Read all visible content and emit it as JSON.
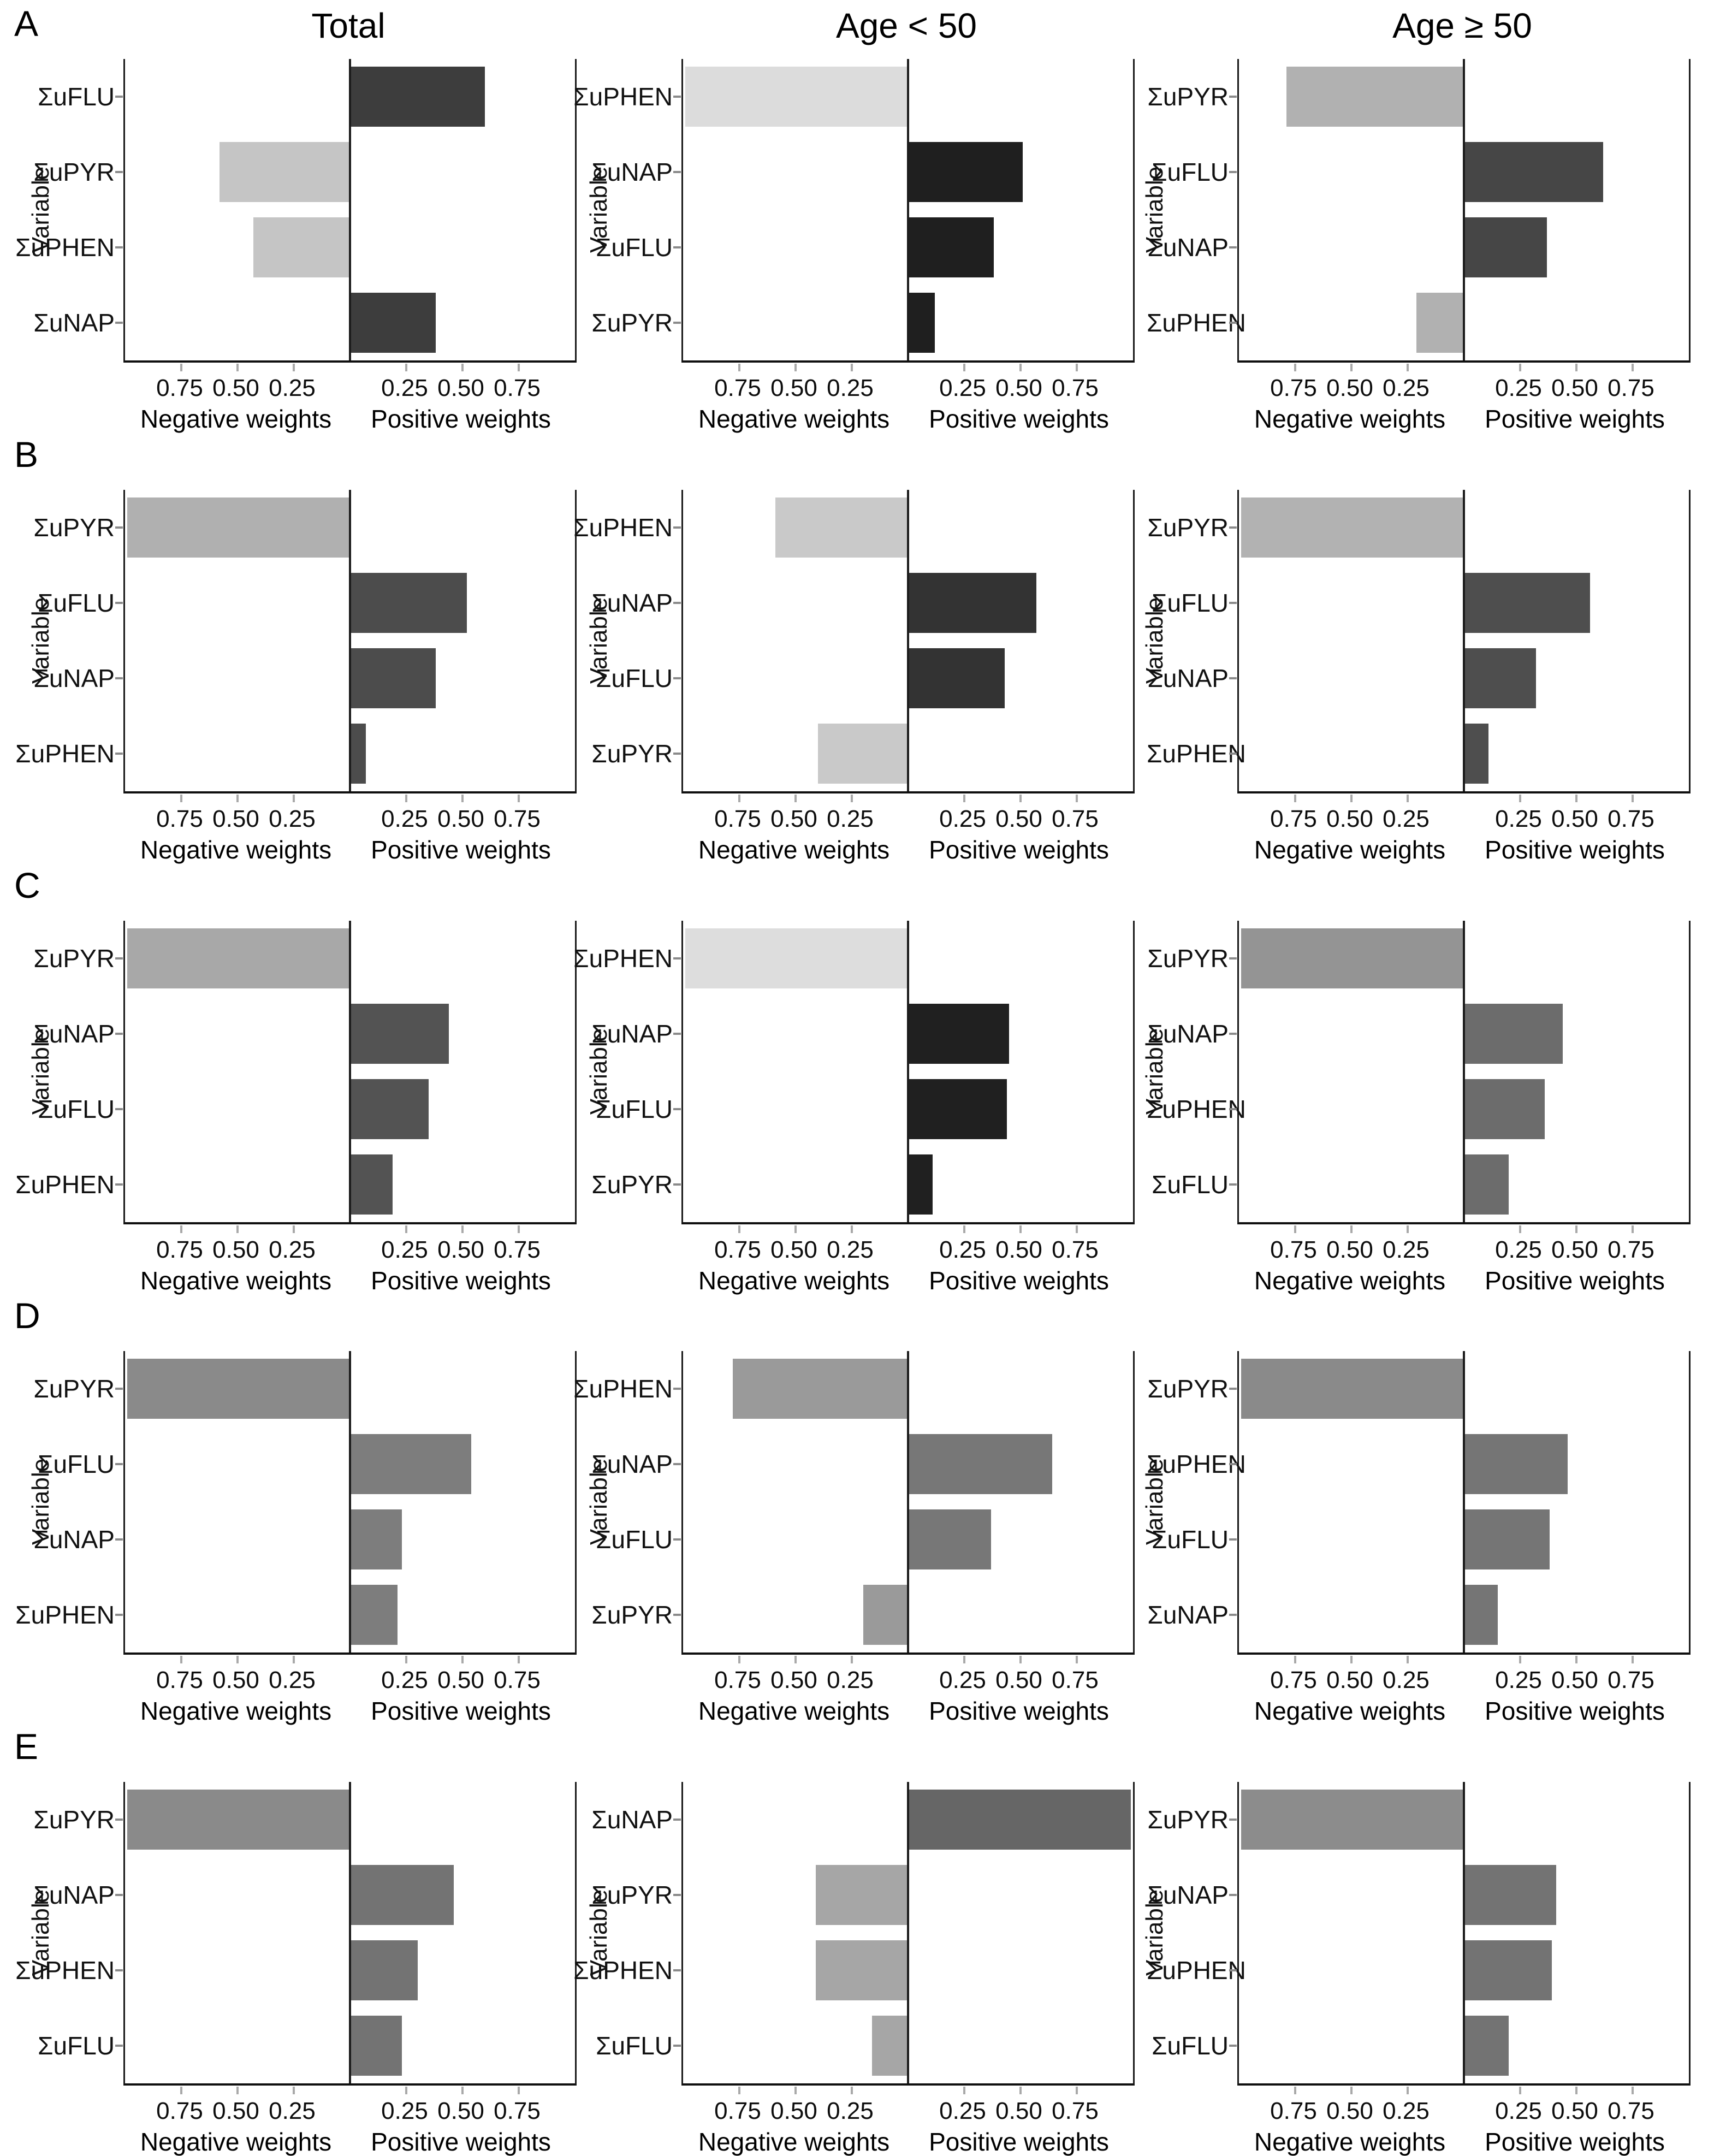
{
  "figure": {
    "row_labels": [
      "A",
      "B",
      "C",
      "D",
      "E"
    ],
    "col_titles": [
      "Total",
      "Age < 50",
      "Age ≥ 50"
    ],
    "y_axis_title": "Variable",
    "neg_caption": "Negative weights",
    "pos_caption": "Positive weights",
    "neg_ticks": [
      "0.75",
      "0.50",
      "0.25"
    ],
    "pos_ticks": [
      "0.25",
      "0.50",
      "0.75"
    ],
    "axis_limit": 1.0,
    "background_color": "#ffffff",
    "axis_line_color": "#1a1a1a"
  },
  "chart_data": [
    {
      "panel": "A",
      "group": "Total",
      "type": "bar",
      "orientation": "horizontal-diverging",
      "xlim": [
        -1,
        1
      ],
      "categories": [
        "ΣuFLU",
        "ΣuPYR",
        "ΣuPHEN",
        "ΣuNAP"
      ],
      "values": [
        0.6,
        -0.58,
        -0.43,
        0.38
      ],
      "neg_color": "#c5c5c5",
      "pos_color": "#3d3d3d"
    },
    {
      "panel": "A",
      "group": "Age < 50",
      "type": "bar",
      "orientation": "horizontal-diverging",
      "xlim": [
        -1,
        1
      ],
      "categories": [
        "ΣuPHEN",
        "ΣuNAP",
        "ΣuFLU",
        "ΣuPYR"
      ],
      "values": [
        -0.99,
        0.51,
        0.38,
        0.12
      ],
      "neg_color": "#dcdcdc",
      "pos_color": "#1f1f1f"
    },
    {
      "panel": "A",
      "group": "Age ≥ 50",
      "type": "bar",
      "orientation": "horizontal-diverging",
      "xlim": [
        -1,
        1
      ],
      "categories": [
        "ΣuPYR",
        "ΣuFLU",
        "ΣuNAP",
        "ΣuPHEN"
      ],
      "values": [
        -0.79,
        0.62,
        0.37,
        -0.21
      ],
      "neg_color": "#b1b1b1",
      "pos_color": "#464646"
    },
    {
      "panel": "B",
      "group": "Total",
      "type": "bar",
      "orientation": "horizontal-diverging",
      "xlim": [
        -1,
        1
      ],
      "categories": [
        "ΣuPYR",
        "ΣuFLU",
        "ΣuNAP",
        "ΣuPHEN"
      ],
      "values": [
        -0.99,
        0.52,
        0.38,
        0.07
      ],
      "neg_color": "#b0b0b0",
      "pos_color": "#4c4c4c"
    },
    {
      "panel": "B",
      "group": "Age < 50",
      "type": "bar",
      "orientation": "horizontal-diverging",
      "xlim": [
        -1,
        1
      ],
      "categories": [
        "ΣuPHEN",
        "ΣuNAP",
        "ΣuFLU",
        "ΣuPYR"
      ],
      "values": [
        -0.59,
        0.57,
        0.43,
        -0.4
      ],
      "neg_color": "#c9c9c9",
      "pos_color": "#333333"
    },
    {
      "panel": "B",
      "group": "Age ≥ 50",
      "type": "bar",
      "orientation": "horizontal-diverging",
      "xlim": [
        -1,
        1
      ],
      "categories": [
        "ΣuPYR",
        "ΣuFLU",
        "ΣuNAP",
        "ΣuPHEN"
      ],
      "values": [
        -0.99,
        0.56,
        0.32,
        0.11
      ],
      "neg_color": "#b2b2b2",
      "pos_color": "#4e4e4e"
    },
    {
      "panel": "C",
      "group": "Total",
      "type": "bar",
      "orientation": "horizontal-diverging",
      "xlim": [
        -1,
        1
      ],
      "categories": [
        "ΣuPYR",
        "ΣuNAP",
        "ΣuFLU",
        "ΣuPHEN"
      ],
      "values": [
        -0.99,
        0.44,
        0.35,
        0.19
      ],
      "neg_color": "#a8a8a8",
      "pos_color": "#535353"
    },
    {
      "panel": "C",
      "group": "Age < 50",
      "type": "bar",
      "orientation": "horizontal-diverging",
      "xlim": [
        -1,
        1
      ],
      "categories": [
        "ΣuPHEN",
        "ΣuNAP",
        "ΣuFLU",
        "ΣuPYR"
      ],
      "values": [
        -0.99,
        0.45,
        0.44,
        0.11
      ],
      "neg_color": "#dddddd",
      "pos_color": "#202020"
    },
    {
      "panel": "C",
      "group": "Age ≥ 50",
      "type": "bar",
      "orientation": "horizontal-diverging",
      "xlim": [
        -1,
        1
      ],
      "categories": [
        "ΣuPYR",
        "ΣuNAP",
        "ΣuPHEN",
        "ΣuFLU"
      ],
      "values": [
        -0.99,
        0.44,
        0.36,
        0.2
      ],
      "neg_color": "#949494",
      "pos_color": "#6c6c6c"
    },
    {
      "panel": "D",
      "group": "Total",
      "type": "bar",
      "orientation": "horizontal-diverging",
      "xlim": [
        -1,
        1
      ],
      "categories": [
        "ΣuPYR",
        "ΣuFLU",
        "ΣuNAP",
        "ΣuPHEN"
      ],
      "values": [
        -0.99,
        0.54,
        0.23,
        0.21
      ],
      "neg_color": "#8a8a8a",
      "pos_color": "#7d7d7d"
    },
    {
      "panel": "D",
      "group": "Age < 50",
      "type": "bar",
      "orientation": "horizontal-diverging",
      "xlim": [
        -1,
        1
      ],
      "categories": [
        "ΣuPHEN",
        "ΣuNAP",
        "ΣuFLU",
        "ΣuPYR"
      ],
      "values": [
        -0.78,
        0.64,
        0.37,
        -0.2
      ],
      "neg_color": "#9a9a9a",
      "pos_color": "#777777"
    },
    {
      "panel": "D",
      "group": "Age ≥ 50",
      "type": "bar",
      "orientation": "horizontal-diverging",
      "xlim": [
        -1,
        1
      ],
      "categories": [
        "ΣuPYR",
        "ΣuPHEN",
        "ΣuFLU",
        "ΣuNAP"
      ],
      "values": [
        -0.99,
        0.46,
        0.38,
        0.15
      ],
      "neg_color": "#8a8a8a",
      "pos_color": "#757575"
    },
    {
      "panel": "E",
      "group": "Total",
      "type": "bar",
      "orientation": "horizontal-diverging",
      "xlim": [
        -1,
        1
      ],
      "categories": [
        "ΣuPYR",
        "ΣuNAP",
        "ΣuPHEN",
        "ΣuFLU"
      ],
      "values": [
        -0.99,
        0.46,
        0.3,
        0.23
      ],
      "neg_color": "#8a8a8a",
      "pos_color": "#737373"
    },
    {
      "panel": "E",
      "group": "Age < 50",
      "type": "bar",
      "orientation": "horizontal-diverging",
      "xlim": [
        -1,
        1
      ],
      "categories": [
        "ΣuNAP",
        "ΣuPYR",
        "ΣuPHEN",
        "ΣuFLU"
      ],
      "values": [
        0.99,
        -0.41,
        -0.41,
        -0.16
      ],
      "neg_color": "#a6a6a6",
      "pos_color": "#666666"
    },
    {
      "panel": "E",
      "group": "Age ≥ 50",
      "type": "bar",
      "orientation": "horizontal-diverging",
      "xlim": [
        -1,
        1
      ],
      "categories": [
        "ΣuPYR",
        "ΣuNAP",
        "ΣuPHEN",
        "ΣuFLU"
      ],
      "values": [
        -0.99,
        0.41,
        0.39,
        0.2
      ],
      "neg_color": "#8c8c8c",
      "pos_color": "#737373"
    }
  ]
}
